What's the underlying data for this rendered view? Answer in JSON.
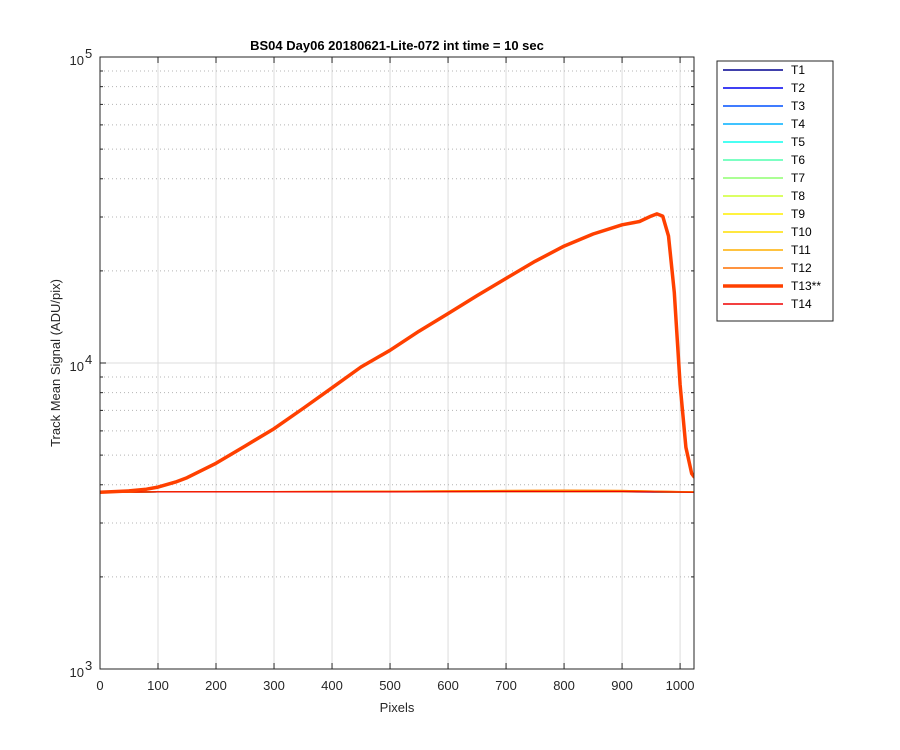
{
  "chart_data": {
    "type": "line",
    "title": "BS04 Day06 20180621-Lite-072 int time = 10 sec",
    "xlabel": "Pixels",
    "ylabel": "Track Mean Signal (ADU/pix)",
    "xlim": [
      0,
      1024
    ],
    "ylim": [
      1000,
      100000
    ],
    "yscale": "log",
    "xticks": [
      0,
      100,
      200,
      300,
      400,
      500,
      600,
      700,
      800,
      900,
      1000
    ],
    "xtick_labels": [
      "0",
      "100",
      "200",
      "300",
      "400",
      "500",
      "600",
      "700",
      "800",
      "900",
      "1000"
    ],
    "yticks": [
      1000,
      10000,
      100000
    ],
    "ytick_labels": [
      {
        "base": "10",
        "exp": "3"
      },
      {
        "base": "10",
        "exp": "4"
      },
      {
        "base": "10",
        "exp": "5"
      }
    ],
    "grid": true,
    "legend_position": "outside-right",
    "series": [
      {
        "name": "T1",
        "color": "#00008f",
        "x": [
          0,
          100,
          300,
          500,
          700,
          800,
          900,
          1024
        ],
        "y": [
          3780,
          3790,
          3790,
          3790,
          3790,
          3790,
          3790,
          3780
        ]
      },
      {
        "name": "T2",
        "color": "#0000ef",
        "x": [
          0,
          100,
          300,
          500,
          700,
          800,
          900,
          1024
        ],
        "y": [
          3780,
          3790,
          3790,
          3790,
          3800,
          3800,
          3800,
          3780
        ]
      },
      {
        "name": "T3",
        "color": "#0050ff",
        "x": [
          0,
          100,
          300,
          500,
          700,
          800,
          900,
          1024
        ],
        "y": [
          3780,
          3790,
          3790,
          3790,
          3800,
          3800,
          3800,
          3780
        ]
      },
      {
        "name": "T4",
        "color": "#00afff",
        "x": [
          0,
          100,
          300,
          500,
          700,
          800,
          900,
          1024
        ],
        "y": [
          3780,
          3790,
          3790,
          3790,
          3800,
          3800,
          3800,
          3780
        ]
      },
      {
        "name": "T5",
        "color": "#0fffef",
        "x": [
          0,
          100,
          300,
          500,
          700,
          800,
          900,
          1024
        ],
        "y": [
          3780,
          3790,
          3790,
          3790,
          3800,
          3800,
          3800,
          3780
        ]
      },
      {
        "name": "T6",
        "color": "#50ffaf",
        "x": [
          0,
          100,
          300,
          500,
          700,
          800,
          900,
          1024
        ],
        "y": [
          3780,
          3790,
          3790,
          3790,
          3800,
          3800,
          3800,
          3780
        ]
      },
      {
        "name": "T7",
        "color": "#8fff70",
        "x": [
          0,
          100,
          300,
          500,
          700,
          800,
          900,
          1024
        ],
        "y": [
          3780,
          3790,
          3790,
          3790,
          3800,
          3800,
          3800,
          3780
        ]
      },
      {
        "name": "T8",
        "color": "#cfff30",
        "x": [
          0,
          100,
          300,
          500,
          700,
          800,
          900,
          1024
        ],
        "y": [
          3780,
          3790,
          3790,
          3790,
          3800,
          3800,
          3800,
          3780
        ]
      },
      {
        "name": "T9",
        "color": "#ffef00",
        "x": [
          0,
          100,
          300,
          500,
          700,
          800,
          900,
          1024
        ],
        "y": [
          3780,
          3790,
          3790,
          3790,
          3800,
          3800,
          3800,
          3780
        ]
      },
      {
        "name": "T10",
        "color": "#ffdf00",
        "x": [
          0,
          100,
          300,
          500,
          700,
          800,
          900,
          1024
        ],
        "y": [
          3780,
          3790,
          3800,
          3810,
          3820,
          3830,
          3820,
          3790
        ]
      },
      {
        "name": "T11",
        "color": "#ffaf00",
        "x": [
          0,
          100,
          300,
          500,
          700,
          800,
          900,
          1024
        ],
        "y": [
          3780,
          3790,
          3800,
          3810,
          3830,
          3840,
          3830,
          3790
        ]
      },
      {
        "name": "T12",
        "color": "#ff7000",
        "x": [
          0,
          100,
          300,
          500,
          700,
          800,
          900,
          1024
        ],
        "y": [
          3780,
          3790,
          3800,
          3810,
          3830,
          3840,
          3830,
          3790
        ]
      },
      {
        "name": "T13**",
        "color": "#ff4000",
        "bold": true,
        "x": [
          0,
          50,
          80,
          100,
          130,
          150,
          180,
          200,
          250,
          300,
          350,
          400,
          450,
          500,
          550,
          600,
          650,
          700,
          750,
          800,
          850,
          900,
          930,
          950,
          960,
          970,
          980,
          990,
          1000,
          1010,
          1020,
          1024
        ],
        "y": [
          3780,
          3820,
          3870,
          3930,
          4080,
          4220,
          4500,
          4700,
          5350,
          6100,
          7100,
          8300,
          9700,
          11000,
          12700,
          14500,
          16600,
          18900,
          21500,
          24100,
          26400,
          28300,
          29000,
          30200,
          30700,
          30200,
          26000,
          17000,
          8500,
          5300,
          4350,
          4250
        ]
      },
      {
        "name": "T14",
        "color": "#ef0000",
        "x": [
          0,
          100,
          300,
          500,
          700,
          800,
          900,
          1024
        ],
        "y": [
          3780,
          3790,
          3790,
          3790,
          3800,
          3800,
          3800,
          3780
        ]
      }
    ]
  }
}
